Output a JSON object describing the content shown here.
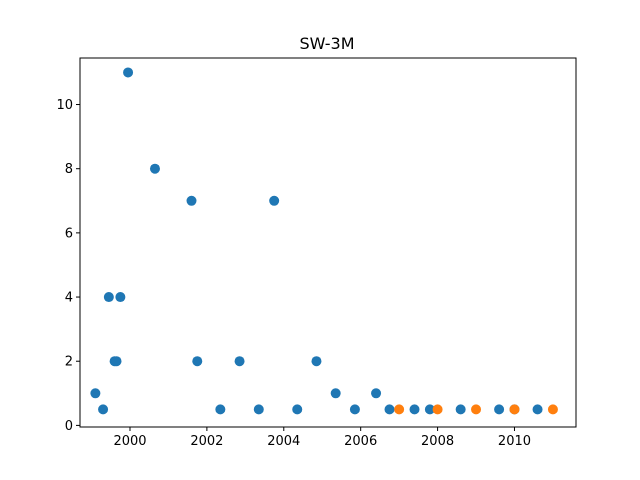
{
  "chart_data": {
    "type": "scatter",
    "title": "SW-3M",
    "xlabel": "",
    "ylabel": "",
    "xlim": [
      1998.7,
      2011.6
    ],
    "ylim": [
      -0.05,
      11.45
    ],
    "x_ticks": [
      2000,
      2002,
      2004,
      2006,
      2008,
      2010
    ],
    "y_ticks": [
      0,
      2,
      4,
      6,
      8,
      10
    ],
    "grid": false,
    "series": [
      {
        "color": "#1f77b4",
        "points": [
          {
            "x": 1999.1,
            "y": 1
          },
          {
            "x": 1999.3,
            "y": 0.5
          },
          {
            "x": 1999.45,
            "y": 4
          },
          {
            "x": 1999.6,
            "y": 2
          },
          {
            "x": 1999.65,
            "y": 2
          },
          {
            "x": 1999.75,
            "y": 4
          },
          {
            "x": 1999.95,
            "y": 11
          },
          {
            "x": 2000.65,
            "y": 8
          },
          {
            "x": 2001.6,
            "y": 7
          },
          {
            "x": 2001.75,
            "y": 2
          },
          {
            "x": 2002.35,
            "y": 0.5
          },
          {
            "x": 2002.85,
            "y": 2
          },
          {
            "x": 2003.35,
            "y": 0.5
          },
          {
            "x": 2003.75,
            "y": 7
          },
          {
            "x": 2004.35,
            "y": 0.5
          },
          {
            "x": 2004.85,
            "y": 2
          },
          {
            "x": 2005.35,
            "y": 1
          },
          {
            "x": 2005.85,
            "y": 0.5
          },
          {
            "x": 2006.4,
            "y": 1
          },
          {
            "x": 2006.75,
            "y": 0.5
          },
          {
            "x": 2007.4,
            "y": 0.5
          },
          {
            "x": 2007.8,
            "y": 0.5
          },
          {
            "x": 2008.6,
            "y": 0.5
          },
          {
            "x": 2009.6,
            "y": 0.5
          },
          {
            "x": 2010.0,
            "y": 0.5
          },
          {
            "x": 2010.6,
            "y": 0.5
          }
        ]
      },
      {
        "color": "#ff7f0e",
        "points": [
          {
            "x": 2007.0,
            "y": 0.5
          },
          {
            "x": 2008.0,
            "y": 0.5
          },
          {
            "x": 2009.0,
            "y": 0.5
          },
          {
            "x": 2010.0,
            "y": 0.5
          },
          {
            "x": 2011.0,
            "y": 0.5
          }
        ]
      }
    ]
  }
}
